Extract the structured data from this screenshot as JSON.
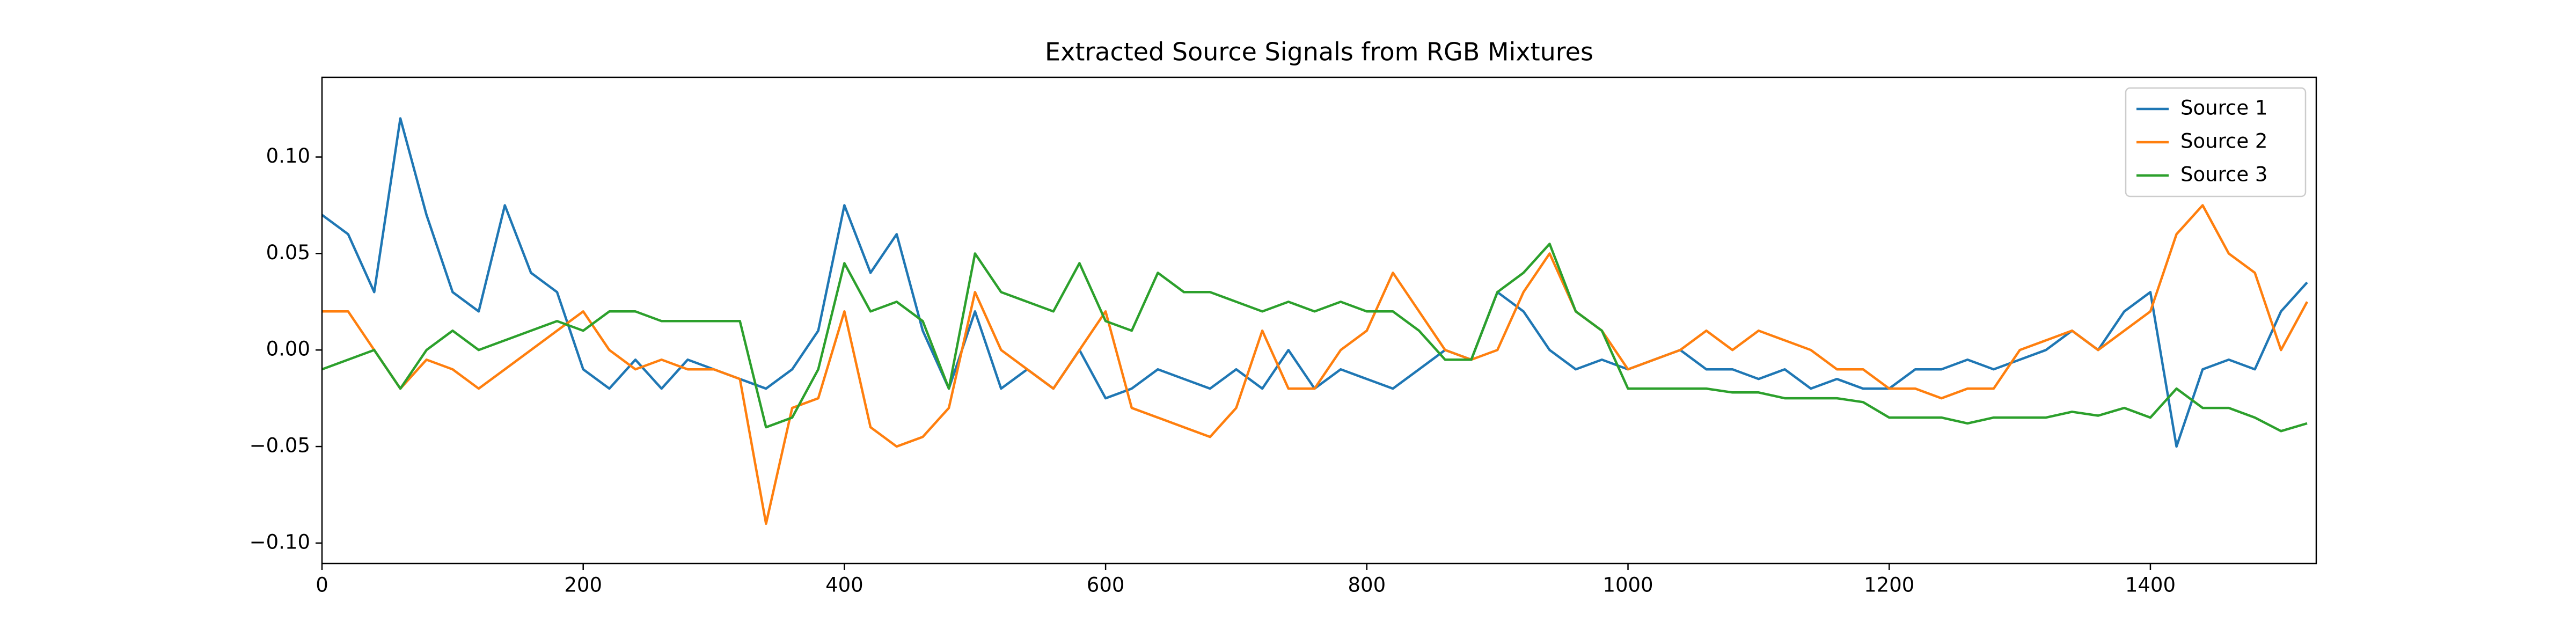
{
  "chart_data": {
    "type": "line",
    "title": "Extracted Source Signals from RGB Mixtures",
    "x": [
      0,
      20,
      40,
      60,
      80,
      100,
      120,
      140,
      160,
      180,
      200,
      220,
      240,
      260,
      280,
      300,
      320,
      340,
      360,
      380,
      400,
      420,
      440,
      460,
      480,
      500,
      520,
      540,
      560,
      580,
      600,
      620,
      640,
      660,
      680,
      700,
      720,
      740,
      760,
      780,
      800,
      820,
      840,
      860,
      880,
      900,
      920,
      940,
      960,
      980,
      1000,
      1020,
      1040,
      1060,
      1080,
      1100,
      1120,
      1140,
      1160,
      1180,
      1200,
      1220,
      1240,
      1260,
      1280,
      1300,
      1320,
      1340,
      1360,
      1380,
      1400,
      1420,
      1440,
      1460,
      1480,
      1500,
      1520
    ],
    "series": [
      {
        "name": "Source 1",
        "color": "#1f77b4",
        "values": [
          0.07,
          0.06,
          0.03,
          0.12,
          0.07,
          0.03,
          0.02,
          0.075,
          0.04,
          0.03,
          -0.01,
          -0.02,
          -0.005,
          -0.02,
          -0.005,
          -0.01,
          -0.015,
          -0.02,
          -0.01,
          0.01,
          0.075,
          0.04,
          0.06,
          0.01,
          -0.02,
          0.02,
          -0.02,
          -0.01,
          -0.02,
          0,
          -0.025,
          -0.02,
          -0.01,
          -0.015,
          -0.02,
          -0.01,
          -0.02,
          0,
          -0.02,
          -0.01,
          -0.015,
          -0.02,
          -0.01,
          0,
          -0.005,
          0.03,
          0.02,
          0,
          -0.01,
          -0.005,
          -0.01,
          -0.005,
          0,
          -0.01,
          -0.01,
          -0.015,
          -0.01,
          -0.02,
          -0.015,
          -0.02,
          -0.02,
          -0.01,
          -0.01,
          -0.005,
          -0.01,
          -0.005,
          0,
          0.01,
          0,
          0.02,
          0.03,
          -0.05,
          -0.01,
          -0.005,
          -0.01,
          0.02,
          0.035
        ]
      },
      {
        "name": "Source 2",
        "color": "#ff7f0e",
        "values": [
          0.02,
          0.02,
          0,
          -0.02,
          -0.005,
          -0.01,
          -0.02,
          -0.01,
          0,
          0.01,
          0.02,
          0,
          -0.01,
          -0.005,
          -0.01,
          -0.01,
          -0.015,
          -0.09,
          -0.03,
          -0.025,
          0.02,
          -0.04,
          -0.05,
          -0.045,
          -0.03,
          0.03,
          0,
          -0.01,
          -0.02,
          0,
          0.02,
          -0.03,
          -0.035,
          -0.04,
          -0.045,
          -0.03,
          0.01,
          -0.02,
          -0.02,
          0,
          0.01,
          0.04,
          0.02,
          0,
          -0.005,
          0,
          0.03,
          0.05,
          0.02,
          0.01,
          -0.01,
          -0.005,
          0,
          0.01,
          0,
          0.01,
          0.005,
          0,
          -0.01,
          -0.01,
          -0.02,
          -0.02,
          -0.025,
          -0.02,
          -0.02,
          0,
          0.005,
          0.01,
          0,
          0.01,
          0.02,
          0.06,
          0.075,
          0.05,
          0.04,
          0,
          0.025
        ]
      },
      {
        "name": "Source 3",
        "color": "#2ca02c",
        "values": [
          -0.01,
          -0.005,
          0,
          -0.02,
          0,
          0.01,
          0,
          0.005,
          0.01,
          0.015,
          0.01,
          0.02,
          0.02,
          0.015,
          0.015,
          0.015,
          0.015,
          -0.04,
          -0.035,
          -0.01,
          0.045,
          0.02,
          0.025,
          0.015,
          -0.02,
          0.05,
          0.03,
          0.025,
          0.02,
          0.045,
          0.015,
          0.01,
          0.04,
          0.03,
          0.03,
          0.025,
          0.02,
          0.025,
          0.02,
          0.025,
          0.02,
          0.02,
          0.01,
          -0.005,
          -0.005,
          0.03,
          0.04,
          0.055,
          0.02,
          0.01,
          -0.02,
          -0.02,
          -0.02,
          -0.02,
          -0.022,
          -0.022,
          -0.025,
          -0.025,
          -0.025,
          -0.027,
          -0.035,
          -0.035,
          -0.035,
          -0.038,
          -0.035,
          -0.035,
          -0.035,
          -0.032,
          -0.034,
          -0.03,
          -0.035,
          -0.02,
          -0.03,
          -0.03,
          -0.035,
          -0.042,
          -0.038
        ]
      }
    ],
    "xlim": [
      0,
      1527
    ],
    "ylim": [
      -0.1106,
      0.1413
    ],
    "xticks": [
      0,
      200,
      400,
      600,
      800,
      1000,
      1200,
      1400
    ],
    "yticks": [
      {
        "value": -0.1,
        "label": "−0.10"
      },
      {
        "value": -0.05,
        "label": "−0.05"
      },
      {
        "value": 0,
        "label": "0.00"
      },
      0.05,
      {
        "value": 0.1,
        "label": "0.10"
      }
    ],
    "legend": "upper right"
  }
}
